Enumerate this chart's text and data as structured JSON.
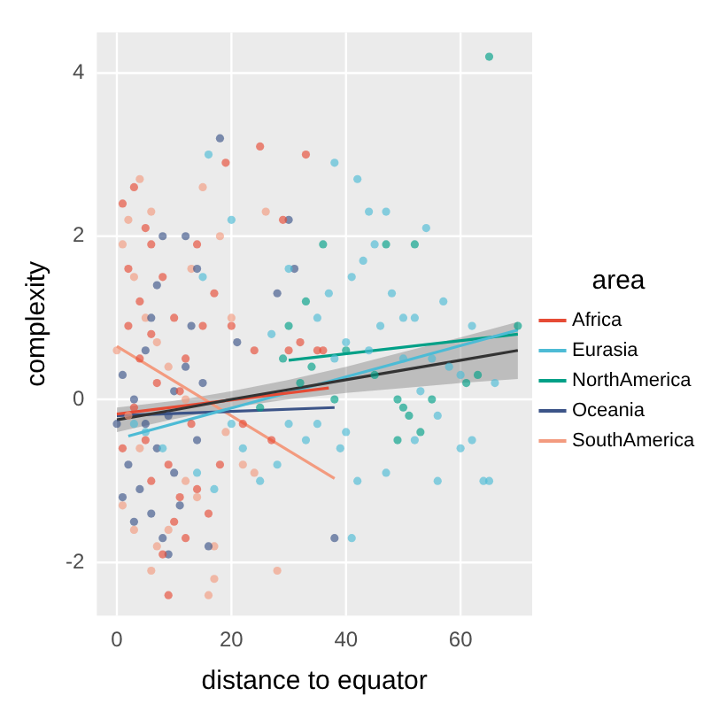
{
  "chart_data": {
    "type": "scatter",
    "xlabel": "distance to equator",
    "ylabel": "complexity",
    "legend_title": "area",
    "legend": "right",
    "grid": true,
    "xlim": [
      -3.5,
      72.5
    ],
    "ylim": [
      -2.65,
      4.5
    ],
    "xticks": [
      0,
      20,
      40,
      60
    ],
    "yticks": [
      -2,
      0,
      2,
      4
    ],
    "series": [
      {
        "name": "Africa",
        "color": "#e64b35",
        "marker": "circle",
        "x": [
          1,
          3,
          5,
          2,
          4,
          6,
          8,
          10,
          12,
          7,
          3,
          5,
          9,
          11,
          10,
          12,
          8,
          9,
          6,
          13,
          15,
          17,
          14,
          19,
          25,
          29,
          33,
          20,
          24,
          30,
          35,
          36,
          32,
          22,
          27,
          18,
          4,
          1,
          2,
          6,
          11,
          14,
          16
        ],
        "values": [
          2.4,
          2.6,
          2.1,
          1.6,
          1.2,
          0.8,
          1.5,
          1.0,
          0.5,
          0.2,
          -0.1,
          -0.5,
          -0.8,
          -1.2,
          -1.5,
          -1.7,
          -1.9,
          -2.4,
          -1.0,
          -0.3,
          0.9,
          1.3,
          1.9,
          2.9,
          3.1,
          2.2,
          3.0,
          0.9,
          0.6,
          0.6,
          0.6,
          0.6,
          0.7,
          -0.3,
          -0.5,
          -0.8,
          0.5,
          -0.6,
          0.9,
          1.9,
          0.1,
          -1.1,
          -1.4
        ]
      },
      {
        "name": "Eurasia",
        "color": "#4dbbd5",
        "marker": "circle",
        "x": [
          45,
          43,
          41,
          37,
          35,
          40,
          38,
          44,
          46,
          50,
          55,
          58,
          60,
          66,
          62,
          52,
          48,
          54,
          57,
          42,
          38,
          44,
          47,
          50,
          53,
          56,
          60,
          62,
          64,
          65,
          56,
          47,
          52,
          42,
          40,
          39,
          41,
          35,
          30,
          28,
          25,
          22,
          20,
          17,
          14,
          8,
          5,
          3,
          20,
          15,
          16,
          30,
          27,
          33
        ],
        "values": [
          1.9,
          1.7,
          1.5,
          1.3,
          1.0,
          0.7,
          0.5,
          0.6,
          0.9,
          0.5,
          0.5,
          0.4,
          0.3,
          0.2,
          0.9,
          1.0,
          1.3,
          2.1,
          1.2,
          2.7,
          2.9,
          2.3,
          2.3,
          1.0,
          0.1,
          -0.2,
          -0.6,
          -0.5,
          -1.0,
          -1.0,
          -1.0,
          -0.9,
          -0.5,
          -1.0,
          -0.4,
          -0.6,
          -1.7,
          -0.3,
          -0.3,
          -0.8,
          -1.0,
          -0.6,
          -0.3,
          -1.1,
          -0.9,
          -0.6,
          -0.4,
          -0.3,
          2.2,
          1.5,
          3.0,
          1.6,
          0.8,
          -0.5
        ]
      },
      {
        "name": "NorthAmerica",
        "color": "#00a087",
        "marker": "circle",
        "x": [
          65,
          36,
          33,
          30,
          47,
          52,
          34,
          40,
          45,
          49,
          50,
          53,
          51,
          55,
          49,
          61,
          63,
          70,
          32,
          38,
          29,
          25
        ],
        "values": [
          4.2,
          1.9,
          1.2,
          0.9,
          1.9,
          1.9,
          0.4,
          0.6,
          0.3,
          0.0,
          -0.1,
          -0.4,
          -0.2,
          0.0,
          -0.5,
          0.2,
          0.3,
          0.9,
          0.2,
          0.0,
          0.5,
          -0.1
        ]
      },
      {
        "name": "Oceania",
        "color": "#3c5488",
        "marker": "circle",
        "x": [
          18,
          30,
          14,
          12,
          28,
          31,
          21,
          1,
          3,
          5,
          7,
          2,
          4,
          6,
          8,
          10,
          11,
          9,
          12,
          13,
          6,
          7,
          8,
          5,
          3,
          1,
          14,
          16,
          38,
          10,
          0,
          9,
          15
        ],
        "values": [
          3.2,
          2.2,
          1.6,
          2.0,
          1.3,
          1.6,
          0.7,
          0.3,
          0.0,
          -0.3,
          -0.6,
          -0.8,
          -1.1,
          -1.4,
          -1.7,
          -0.9,
          -1.3,
          -0.2,
          0.4,
          0.9,
          1.0,
          1.4,
          2.0,
          0.6,
          -1.5,
          -1.2,
          -0.5,
          -1.8,
          -1.7,
          0.1,
          -0.3,
          -1.9,
          0.2
        ]
      },
      {
        "name": "SouthAmerica",
        "color": "#f39b7f",
        "marker": "circle",
        "x": [
          2,
          4,
          6,
          1,
          3,
          5,
          7,
          9,
          12,
          0,
          2,
          4,
          13,
          15,
          18,
          26,
          20,
          22,
          24,
          17,
          16,
          17,
          28,
          12,
          9,
          14,
          19,
          7,
          1,
          3,
          6
        ],
        "values": [
          2.2,
          2.7,
          2.3,
          1.9,
          1.5,
          1.0,
          0.7,
          0.4,
          0.0,
          0.6,
          -0.2,
          -0.6,
          1.6,
          2.6,
          2.0,
          2.3,
          1.0,
          -0.8,
          -0.9,
          -2.2,
          -2.4,
          -1.8,
          -2.1,
          -1.0,
          -1.6,
          -1.2,
          -0.4,
          -1.8,
          -1.3,
          -1.6,
          -2.1
        ]
      },
      {
        "type": "line",
        "marker": "none",
        "color": "#333333",
        "x": [
          0,
          10,
          20,
          30,
          40,
          50,
          60,
          70
        ],
        "values": [
          -0.25,
          -0.13,
          0.0,
          0.12,
          0.24,
          0.36,
          0.48,
          0.6
        ],
        "lower": [
          -0.4,
          -0.24,
          -0.1,
          0.0,
          0.08,
          0.14,
          0.2,
          0.25
        ],
        "upper": [
          -0.1,
          -0.02,
          0.1,
          0.24,
          0.4,
          0.58,
          0.76,
          0.95
        ]
      },
      {
        "type": "line",
        "marker": "none",
        "color": "#e64b35",
        "x": [
          0,
          37
        ],
        "values": [
          -0.18,
          0.14
        ]
      },
      {
        "type": "line",
        "marker": "none",
        "color": "#4dbbd5",
        "x": [
          2,
          70
        ],
        "values": [
          -0.45,
          0.85
        ]
      },
      {
        "type": "line",
        "marker": "none",
        "color": "#00a087",
        "x": [
          30,
          70
        ],
        "values": [
          0.48,
          0.8
        ]
      },
      {
        "type": "line",
        "marker": "none",
        "color": "#3c5488",
        "x": [
          0,
          38
        ],
        "values": [
          -0.2,
          -0.1
        ]
      },
      {
        "type": "line",
        "marker": "none",
        "color": "#f39b7f",
        "x": [
          0,
          38
        ],
        "values": [
          0.65,
          -0.97
        ]
      }
    ]
  }
}
